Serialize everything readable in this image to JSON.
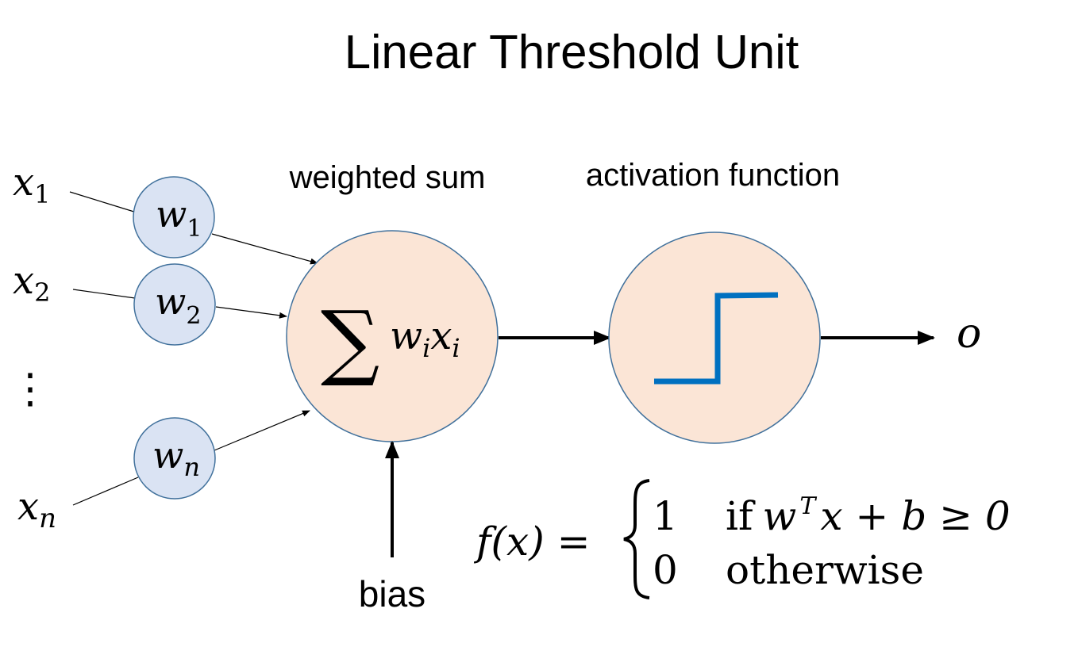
{
  "title": "Linear Threshold Unit",
  "labels": {
    "weighted_sum": "weighted sum",
    "activation_function": "activation function",
    "bias": "bias",
    "output": "o",
    "vertical_ellipsis": "⋮"
  },
  "inputs": [
    {
      "var": "x",
      "sub": "1",
      "weight_var": "w",
      "weight_sub": "1"
    },
    {
      "var": "x",
      "sub": "2",
      "weight_var": "w",
      "weight_sub": "2"
    },
    {
      "var": "x",
      "sub": "n",
      "weight_var": "w",
      "weight_sub": "n"
    }
  ],
  "sum_node": {
    "symbol": "∑",
    "w": "w",
    "w_sub": "i",
    "x": "x",
    "x_sub": "i"
  },
  "formula": {
    "lhs": "f(x) =",
    "case1_value": "1",
    "case1_if": "if",
    "case1_cond_w": "w",
    "case1_cond_sup": "T",
    "case1_cond_rest": "x + b ≥ 0",
    "case2_value": "0",
    "case2_cond": "otherwise"
  },
  "colors": {
    "weight_fill": "#dae3f3",
    "weight_stroke": "#41719c",
    "node_fill": "#fbe5d6",
    "node_stroke": "#41719c",
    "step_line": "#0070c0",
    "text": "#000000"
  }
}
